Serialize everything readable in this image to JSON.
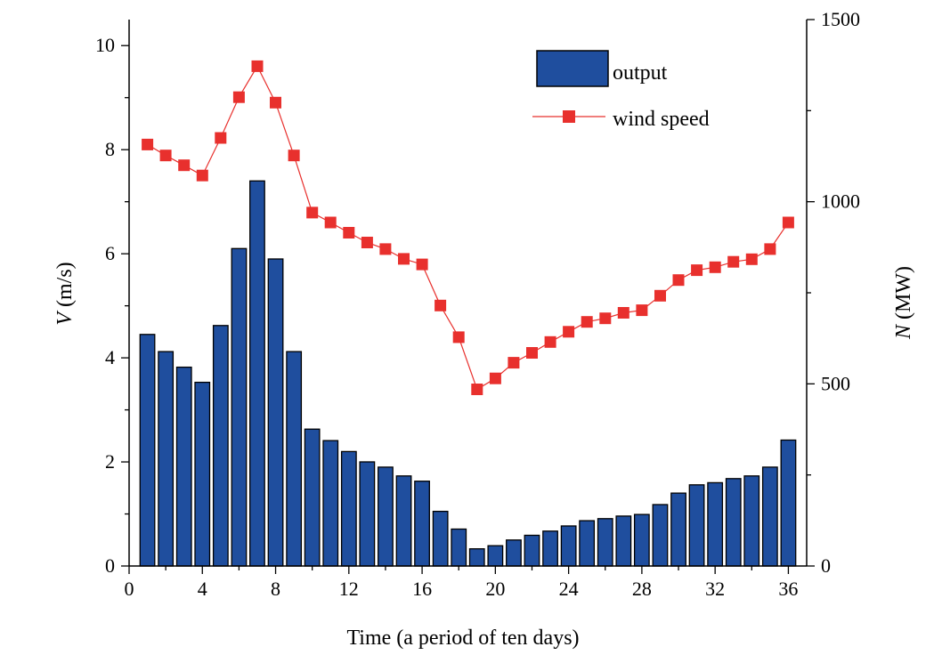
{
  "chart_data": {
    "type": "bar+line",
    "title": "",
    "x": [
      1,
      2,
      3,
      4,
      5,
      6,
      7,
      8,
      9,
      10,
      11,
      12,
      13,
      14,
      15,
      16,
      17,
      18,
      19,
      20,
      21,
      22,
      23,
      24,
      25,
      26,
      27,
      28,
      29,
      30,
      31,
      32,
      33,
      34,
      35,
      36
    ],
    "xlabel": "Time (a period of ten days)",
    "xlim": [
      0,
      37
    ],
    "xticks": [
      0,
      4,
      8,
      12,
      16,
      20,
      24,
      28,
      32,
      36
    ],
    "left_axis": {
      "label_italic": "V",
      "label_rest": " (m/s)",
      "lim": [
        0,
        10.5
      ],
      "ticks": [
        0,
        2,
        4,
        6,
        8,
        10
      ]
    },
    "right_axis": {
      "label_italic": "N",
      "label_rest": " (MW)",
      "lim": [
        0,
        1500
      ],
      "ticks": [
        0,
        500,
        1000,
        1500
      ]
    },
    "series": [
      {
        "name": "output",
        "kind": "bar",
        "axis": "left",
        "color": "#1f4e9e",
        "values": [
          4.45,
          4.12,
          3.82,
          3.53,
          4.62,
          6.1,
          7.4,
          5.9,
          4.12,
          2.63,
          2.41,
          2.2,
          2.0,
          1.9,
          1.73,
          1.63,
          1.05,
          0.71,
          0.33,
          0.39,
          0.5,
          0.59,
          0.67,
          0.77,
          0.87,
          0.91,
          0.96,
          0.99,
          1.18,
          1.4,
          1.56,
          1.6,
          1.68,
          1.73,
          1.9,
          2.42
        ]
      },
      {
        "name": "wind speed",
        "kind": "line",
        "axis": "right",
        "color": "#e8302d",
        "values": [
          1157,
          1127,
          1100,
          1072,
          1175,
          1287,
          1372,
          1272,
          1127,
          970,
          943,
          915,
          888,
          870,
          843,
          828,
          715,
          628,
          485,
          515,
          558,
          585,
          615,
          643,
          670,
          680,
          695,
          702,
          742,
          785,
          812,
          820,
          835,
          842,
          870,
          943
        ]
      }
    ],
    "legend": {
      "placement": "top-right"
    }
  }
}
